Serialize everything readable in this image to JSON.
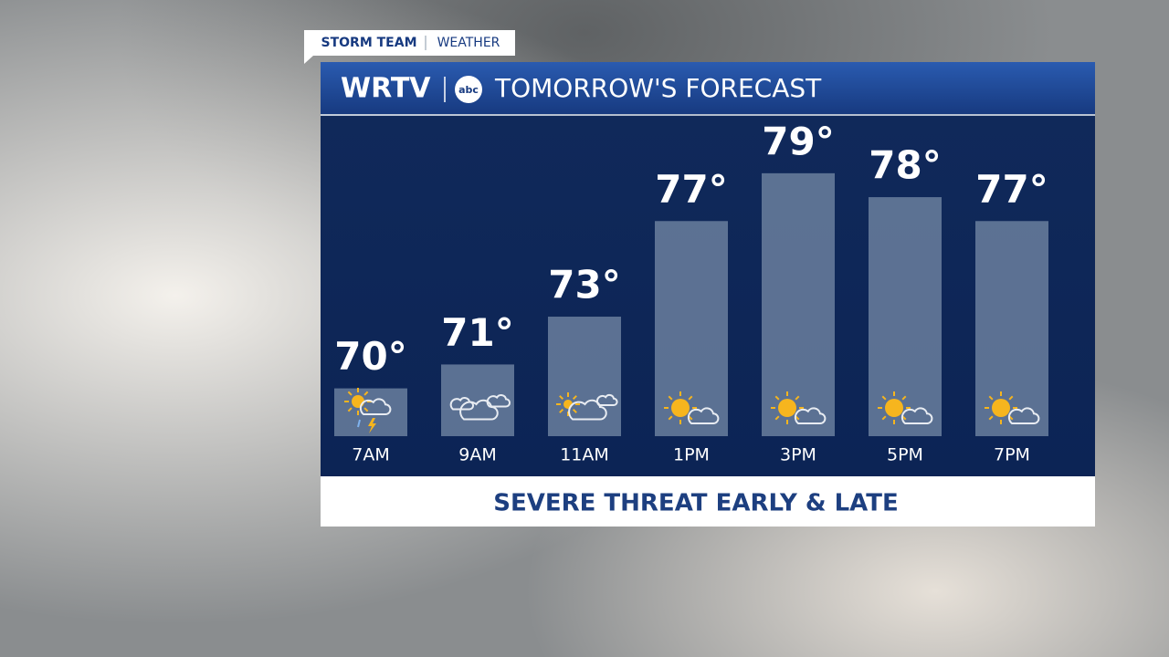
{
  "tag": {
    "left": "STORM TEAM",
    "right": "WEATHER"
  },
  "brand": {
    "station": "WRTV",
    "network": "abc"
  },
  "chart_data": {
    "type": "bar",
    "title": "TOMORROW'S FORECAST",
    "categories": [
      "7AM",
      "9AM",
      "11AM",
      "1PM",
      "3PM",
      "5PM",
      "7PM"
    ],
    "values": [
      70,
      71,
      73,
      77,
      79,
      78,
      77
    ],
    "value_labels": [
      "70°",
      "71°",
      "73°",
      "77°",
      "79°",
      "78°",
      "77°"
    ],
    "color": "#6a7f9e",
    "ylim": [
      68,
      81.4
    ]
  },
  "footer": "SEVERE THREAT EARLY & LATE"
}
